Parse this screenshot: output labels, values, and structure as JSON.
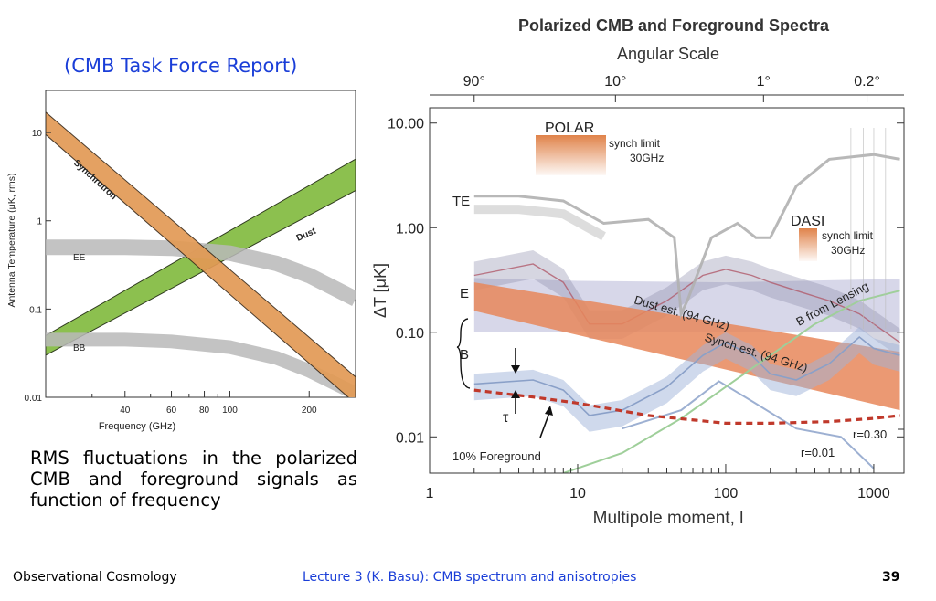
{
  "slide": {
    "header": "(CMB Task Force Report)",
    "caption": "RMS fluctuations in the polarized CMB and foreground signals as function of frequency",
    "footer_left": "Observational Cosmology",
    "footer_center": "Lecture 3 (K. Basu):  CMB spectrum and anisotropies",
    "page_number": "39"
  },
  "colors": {
    "link_blue": "#1a3ed8",
    "synchrotron": "#e29a55",
    "dust": "#8cc04f",
    "cmb_band": "#b9b9b9",
    "polar_orange": "#e0834a",
    "foreground_red": "#c0392b",
    "dust_est": "#a7a7cf",
    "synch_est": "#e8875a",
    "e_band": "#8a8aa8",
    "b_band": "#9fb3d9",
    "lensing_green": "#9fcf9a"
  },
  "chart_data": [
    {
      "type": "area",
      "title": "",
      "xlabel": "Frequency (GHz)",
      "ylabel": "Antenna Temperature (μK, rms)",
      "xscale": "log",
      "yscale": "log",
      "xlim": [
        20,
        300
      ],
      "ylim": [
        0.01,
        30
      ],
      "xticks": [
        40,
        60,
        80,
        100,
        200
      ],
      "xtick_labels": [
        "40",
        "60",
        "80",
        "100",
        "200"
      ],
      "yticks": [
        0.01,
        0.1,
        1,
        10
      ],
      "ytick_labels": [
        "0.01",
        "0.1",
        "1",
        "10"
      ],
      "series": [
        {
          "name": "Synchrotron",
          "x": [
            20,
            300
          ],
          "low": [
            9.5,
            0.0085
          ],
          "high": [
            17,
            0.017
          ]
        },
        {
          "name": "Dust",
          "x": [
            20,
            300
          ],
          "low": [
            0.03,
            2.2
          ],
          "high": [
            0.05,
            5.0
          ]
        },
        {
          "name": "EE",
          "x": [
            20,
            40,
            60,
            100,
            150,
            200,
            300
          ],
          "values": [
            0.5,
            0.5,
            0.49,
            0.43,
            0.33,
            0.24,
            0.13
          ]
        },
        {
          "name": "BB",
          "x": [
            20,
            40,
            60,
            100,
            150,
            200,
            300
          ],
          "values": [
            0.045,
            0.045,
            0.043,
            0.037,
            0.028,
            0.02,
            0.011
          ]
        }
      ]
    },
    {
      "type": "line",
      "title": "Polarized CMB and Foreground Spectra",
      "top_axis_label": "Angular Scale",
      "top_ticks": [
        2,
        18,
        180,
        900
      ],
      "top_tick_labels": [
        "90°",
        "10°",
        "1°",
        "0.2°"
      ],
      "xlabel": "Multipole moment, l",
      "ylabel": "ΔT [μK]",
      "xscale": "log",
      "yscale": "log",
      "xlim": [
        1,
        1600
      ],
      "ylim": [
        0.0045,
        14
      ],
      "xticks": [
        1,
        10,
        100,
        1000
      ],
      "xtick_labels": [
        "1",
        "10",
        "100",
        "1000"
      ],
      "yticks": [
        0.01,
        0.1,
        1,
        10
      ],
      "ytick_labels": [
        "0.01",
        "0.10",
        "1.00",
        "10.00"
      ],
      "labels": {
        "polar": "POLAR",
        "synch_limit": "synch limit",
        "freq_30": "30GHz",
        "dasi": "DASI",
        "te": "TE",
        "e": "E",
        "b": "B",
        "tau": "τ",
        "dust_est": "Dust est. (94 GHz)",
        "synch_est": "Synch est. (94 GHz)",
        "b_lensing": "B from Lensing",
        "r030": "r=0.30",
        "r001": "r=0.01",
        "foreground": "10% Foreground"
      },
      "series": [
        {
          "name": "TE",
          "l": [
            2,
            4,
            8,
            15,
            30,
            45,
            50,
            55,
            80,
            120,
            160,
            200,
            300,
            500,
            1000,
            1500
          ],
          "values": [
            2.0,
            2.0,
            1.8,
            1.1,
            1.2,
            0.8,
            0.15,
            0.2,
            0.8,
            1.1,
            0.8,
            0.8,
            2.5,
            4.5,
            5.0,
            4.5
          ]
        },
        {
          "name": "E",
          "l": [
            2,
            5,
            8,
            12,
            20,
            40,
            70,
            100,
            150,
            200,
            300,
            500,
            800,
            1200,
            1500
          ],
          "values": [
            0.35,
            0.45,
            0.3,
            0.12,
            0.12,
            0.2,
            0.35,
            0.4,
            0.35,
            0.3,
            0.25,
            0.2,
            0.15,
            0.1,
            0.08
          ]
        },
        {
          "name": "B r=0.30",
          "l": [
            2,
            5,
            8,
            12,
            20,
            40,
            70,
            100,
            150,
            200,
            300,
            500,
            800,
            1000,
            1500
          ],
          "values": [
            0.032,
            0.035,
            0.028,
            0.016,
            0.018,
            0.03,
            0.06,
            0.08,
            0.06,
            0.04,
            0.035,
            0.05,
            0.09,
            0.07,
            0.06
          ]
        },
        {
          "name": "B r=0.01",
          "l": [
            20,
            50,
            90,
            150,
            300,
            600,
            1000
          ],
          "values": [
            0.012,
            0.018,
            0.034,
            0.022,
            0.012,
            0.01,
            0.005
          ]
        },
        {
          "name": "B from Lensing",
          "l": [
            8,
            20,
            50,
            100,
            200,
            400,
            800,
            1500
          ],
          "values": [
            0.0045,
            0.007,
            0.015,
            0.03,
            0.06,
            0.12,
            0.2,
            0.25
          ]
        },
        {
          "name": "Dust est. (94 GHz)",
          "l": [
            2,
            10,
            100,
            1000,
            1500
          ],
          "low": [
            0.1,
            0.1,
            0.1,
            0.1,
            0.1
          ],
          "high": [
            0.33,
            0.31,
            0.3,
            0.32,
            0.32
          ]
        },
        {
          "name": "Synch est. (94 GHz)",
          "l": [
            2,
            1500
          ],
          "low": [
            0.16,
            0.018
          ],
          "high": [
            0.3,
            0.065
          ]
        },
        {
          "name": "10% Foreground",
          "l": [
            2,
            5,
            10,
            30,
            100,
            200,
            500,
            1000,
            1500
          ],
          "values": [
            0.028,
            0.024,
            0.021,
            0.016,
            0.0135,
            0.0135,
            0.014,
            0.015,
            0.016
          ]
        }
      ]
    }
  ]
}
